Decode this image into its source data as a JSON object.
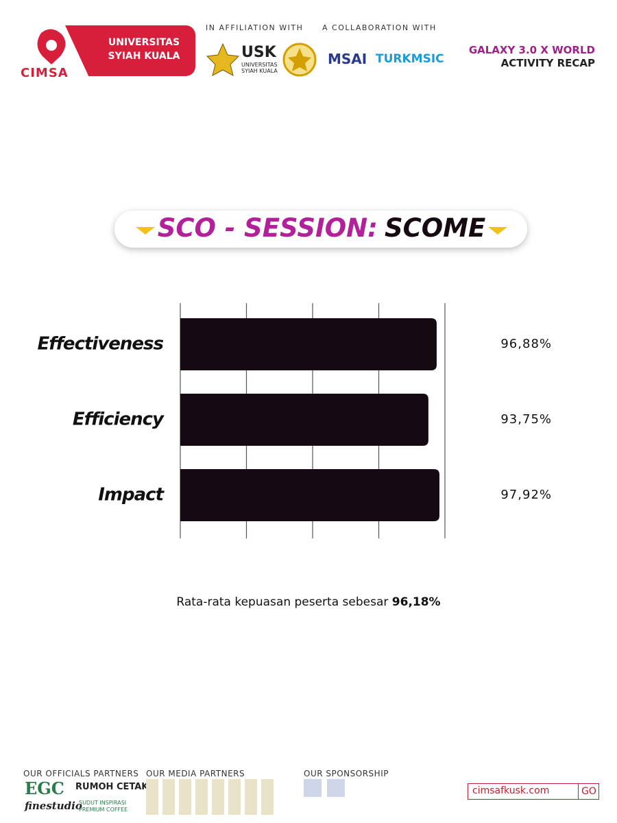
{
  "header": {
    "logo": "CIMSA",
    "banner": [
      "UNIVERSITAS",
      "SYIAH KUALA"
    ],
    "affiliation": "IN AFFILIATION WITH",
    "collaboration": "A COLLABORATION WITH",
    "usk": "USK",
    "usk_sub": [
      "UNIVERSITAS",
      "SYIAH KUALA"
    ],
    "msai": "MSAI",
    "turkmsic": "TURKMSIC",
    "event": "GALAXY 3.0 X WORLD",
    "recap": "ACTIVITY RECAP"
  },
  "chart_data": {
    "type": "bar",
    "orientation": "horizontal",
    "title": [
      "SCO - SESSION:",
      "SCOME"
    ],
    "categories": [
      "Effectiveness",
      "Efficiency",
      "Impact"
    ],
    "values": [
      96.88,
      93.75,
      97.92
    ],
    "value_labels": [
      "96,88%",
      "93,75%",
      "97,92%"
    ],
    "color": "#160a12",
    "xlim": [
      0,
      100
    ],
    "xticks": [
      0,
      25,
      50,
      75,
      100
    ],
    "grid": true
  },
  "summary": {
    "text": "Rata-rata kepuasan peserta sebesar",
    "value": "96,18%"
  },
  "footer": {
    "officials": "OUR OFFICIALS PARTNERS",
    "media": "OUR MEDIA PARTNERS",
    "sponsorship": "OUR SPONSORSHIP",
    "partners": [
      "EGC",
      "RUMOH CETAK",
      "finestudio",
      "SUDUT INSPIRASI PREMIUM COFFEE"
    ],
    "url": "cimsafkusk.com",
    "go": "GO"
  }
}
